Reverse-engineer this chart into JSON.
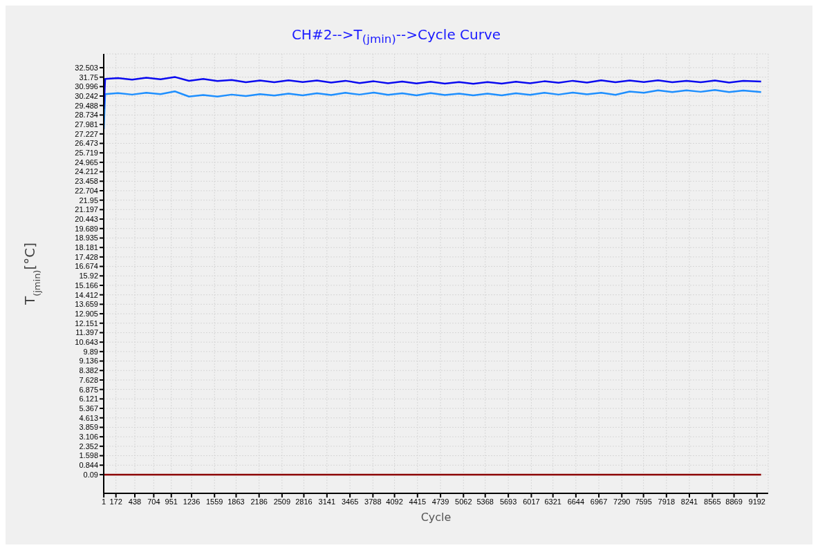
{
  "chart_data": {
    "type": "line",
    "title": "CH#2-->T$_{(jmin)}$-->Cycle Curve",
    "xlabel": "Cycle",
    "ylabel": "T$_{(jmin)}$[°C]",
    "xlim": [
      0,
      9350
    ],
    "xticks": [
      1,
      172,
      438,
      704,
      951,
      1236,
      1559,
      1863,
      2186,
      2509,
      2816,
      3141,
      3465,
      3788,
      4092,
      4415,
      4739,
      5062,
      5368,
      5693,
      6017,
      6321,
      6644,
      6967,
      7290,
      7595,
      7918,
      8241,
      8565,
      8869,
      9192
    ],
    "ylim": [
      -1.4,
      33.6
    ],
    "yticks": [
      32.503,
      31.75,
      30.996,
      30.242,
      29.488,
      28.734,
      27.981,
      27.227,
      26.473,
      25.719,
      24.965,
      24.212,
      23.458,
      22.704,
      21.95,
      21.197,
      20.443,
      19.689,
      18.935,
      18.181,
      17.428,
      16.674,
      15.92,
      15.166,
      14.412,
      13.659,
      12.905,
      12.151,
      11.397,
      10.643,
      9.89,
      9.136,
      8.382,
      7.628,
      6.875,
      6.121,
      5.367,
      4.613,
      3.859,
      3.106,
      2.352,
      1.598,
      0.844,
      0.09
    ],
    "grid": true,
    "marker": "none",
    "line_style": "solid",
    "x": [
      1,
      20,
      200,
      400,
      600,
      800,
      1000,
      1200,
      1400,
      1600,
      1800,
      2000,
      2200,
      2400,
      2600,
      2800,
      3000,
      3200,
      3400,
      3600,
      3800,
      4000,
      4200,
      4400,
      4600,
      4800,
      5000,
      5200,
      5400,
      5600,
      5800,
      6000,
      6200,
      6400,
      6600,
      6800,
      7000,
      7200,
      7400,
      7600,
      7800,
      8000,
      8200,
      8400,
      8600,
      8800,
      9000,
      9250
    ],
    "series": [
      {
        "color": "#0a0af0",
        "values": [
          29.2,
          31.6,
          31.68,
          31.55,
          31.7,
          31.58,
          31.76,
          31.45,
          31.6,
          31.44,
          31.52,
          31.34,
          31.48,
          31.35,
          31.5,
          31.36,
          31.48,
          31.32,
          31.46,
          31.28,
          31.42,
          31.26,
          31.4,
          31.25,
          31.38,
          31.24,
          31.36,
          31.22,
          31.36,
          31.24,
          31.38,
          31.26,
          31.42,
          31.3,
          31.46,
          31.32,
          31.5,
          31.34,
          31.48,
          31.36,
          31.5,
          31.34,
          31.46,
          31.34,
          31.48,
          31.32,
          31.46,
          31.4
        ]
      },
      {
        "color": "#1e8fff",
        "values": [
          27.6,
          30.4,
          30.48,
          30.36,
          30.5,
          30.4,
          30.62,
          30.2,
          30.32,
          30.2,
          30.36,
          30.24,
          30.4,
          30.28,
          30.44,
          30.3,
          30.46,
          30.32,
          30.5,
          30.36,
          30.52,
          30.34,
          30.46,
          30.3,
          30.48,
          30.32,
          30.44,
          30.3,
          30.44,
          30.3,
          30.46,
          30.34,
          30.5,
          30.36,
          30.52,
          30.38,
          30.5,
          30.34,
          30.6,
          30.5,
          30.7,
          30.56,
          30.7,
          30.58,
          30.72,
          30.56,
          30.68,
          30.56
        ]
      },
      {
        "color": "#8b0000",
        "x": [
          1,
          9250
        ],
        "values": [
          0.09,
          0.09
        ]
      }
    ]
  }
}
